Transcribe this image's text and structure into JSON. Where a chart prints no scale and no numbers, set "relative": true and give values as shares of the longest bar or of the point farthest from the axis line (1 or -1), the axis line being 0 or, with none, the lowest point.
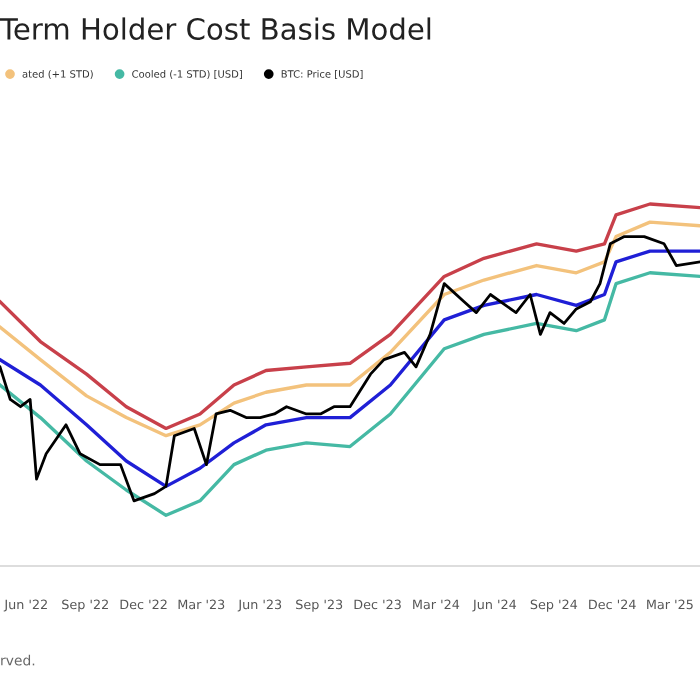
{
  "chart_data": {
    "type": "line",
    "title": "Term Holder Cost Basis Model",
    "relative": true,
    "grid": false,
    "legend": "top left",
    "annotations": [
      "rved."
    ],
    "xlim": [
      "2022-04-21",
      "2025-04-17"
    ],
    "xticks": [
      {
        "value": "2022-06-01",
        "label": "Jun '22"
      },
      {
        "value": "2022-09-01",
        "label": "Sep '22"
      },
      {
        "value": "2022-12-01",
        "label": "Dec '22"
      },
      {
        "value": "2023-03-01",
        "label": "Mar '23"
      },
      {
        "value": "2023-06-01",
        "label": "Jun '23"
      },
      {
        "value": "2023-09-01",
        "label": "Sep '23"
      },
      {
        "value": "2023-12-01",
        "label": "Dec '23"
      },
      {
        "value": "2024-03-01",
        "label": "Mar '24"
      },
      {
        "value": "2024-06-01",
        "label": "Jun '24"
      },
      {
        "value": "2024-09-01",
        "label": "Sep '24"
      },
      {
        "value": "2024-12-01",
        "label": "Dec '24"
      },
      {
        "value": "2025-03-01",
        "label": "Mar '25"
      }
    ],
    "x": [
      "2022-04-21",
      "2022-06-23",
      "2022-09-03",
      "2022-11-04",
      "2023-01-05",
      "2023-02-27",
      "2023-04-21",
      "2023-06-10",
      "2023-08-12",
      "2023-10-19",
      "2023-12-21",
      "2024-03-14",
      "2024-05-15",
      "2024-08-05",
      "2024-10-06",
      "2024-11-19",
      "2024-12-07",
      "2025-01-29",
      "2025-04-17"
    ],
    "series": [
      {
        "color": "#c8404a",
        "values": [
          0.73,
          0.62,
          0.53,
          0.44,
          0.38,
          0.42,
          0.5,
          0.54,
          0.55,
          0.56,
          0.64,
          0.8,
          0.85,
          0.89,
          0.87,
          0.89,
          0.97,
          1.0,
          0.99
        ]
      },
      {
        "name": "ated (+1 STD)",
        "color": "#f3c27c",
        "values": [
          0.66,
          0.57,
          0.47,
          0.41,
          0.36,
          0.39,
          0.45,
          0.48,
          0.5,
          0.5,
          0.59,
          0.75,
          0.79,
          0.83,
          0.81,
          0.84,
          0.91,
          0.95,
          0.94
        ]
      },
      {
        "color": "#1f1fd6",
        "values": [
          0.57,
          0.5,
          0.39,
          0.29,
          0.22,
          0.27,
          0.34,
          0.39,
          0.41,
          0.41,
          0.5,
          0.68,
          0.72,
          0.75,
          0.72,
          0.75,
          0.84,
          0.87,
          0.87
        ]
      },
      {
        "name": "Cooled (-1 STD) [USD]",
        "color": "#45b9a4",
        "values": [
          0.5,
          0.41,
          0.29,
          0.21,
          0.14,
          0.18,
          0.28,
          0.32,
          0.34,
          0.33,
          0.42,
          0.6,
          0.64,
          0.67,
          0.65,
          0.68,
          0.78,
          0.81,
          0.8
        ]
      },
      {
        "name": "BTC: Price [USD]",
        "color": "#000000",
        "x": [
          "2022-04-21",
          "2022-05-07",
          "2022-05-23",
          "2022-06-07",
          "2022-06-17",
          "2022-07-02",
          "2022-08-02",
          "2022-08-24",
          "2022-09-24",
          "2022-10-26",
          "2022-11-16",
          "2022-12-18",
          "2023-01-05",
          "2023-01-18",
          "2023-02-18",
          "2023-03-09",
          "2023-03-24",
          "2023-04-15",
          "2023-05-10",
          "2023-06-01",
          "2023-06-23",
          "2023-07-12",
          "2023-08-12",
          "2023-09-03",
          "2023-09-24",
          "2023-10-19",
          "2023-11-20",
          "2023-12-11",
          "2024-01-12",
          "2024-01-30",
          "2024-02-21",
          "2024-03-14",
          "2024-04-14",
          "2024-05-03",
          "2024-05-25",
          "2024-07-04",
          "2024-07-26",
          "2024-08-11",
          "2024-08-26",
          "2024-09-17",
          "2024-10-06",
          "2024-10-28",
          "2024-11-12",
          "2024-11-28",
          "2024-12-20",
          "2025-01-20",
          "2025-02-20",
          "2025-03-11",
          "2025-04-17"
        ],
        "values": [
          0.55,
          0.46,
          0.44,
          0.46,
          0.24,
          0.31,
          0.39,
          0.31,
          0.28,
          0.28,
          0.18,
          0.2,
          0.22,
          0.36,
          0.38,
          0.28,
          0.42,
          0.43,
          0.41,
          0.41,
          0.42,
          0.44,
          0.42,
          0.42,
          0.44,
          0.44,
          0.53,
          0.57,
          0.59,
          0.55,
          0.64,
          0.78,
          0.73,
          0.7,
          0.75,
          0.7,
          0.75,
          0.64,
          0.7,
          0.67,
          0.71,
          0.73,
          0.78,
          0.89,
          0.91,
          0.91,
          0.89,
          0.83,
          0.84
        ]
      }
    ]
  }
}
